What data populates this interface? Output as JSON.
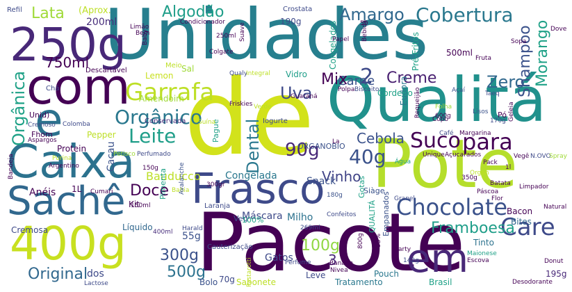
{
  "title": "Word cloud",
  "colors": {
    "background": "#ffffff",
    "palette": [
      "#440154",
      "#46327e",
      "#365c8d",
      "#277f8e",
      "#1fa187",
      "#4ac16d",
      "#a0da39",
      "#fde725"
    ]
  },
  "words": [
    {
      "text": "Unidades"
    },
    {
      "text": "de"
    },
    {
      "text": "Pacote"
    },
    {
      "text": "Pote"
    },
    {
      "text": "Qualitá"
    },
    {
      "text": "Caixa"
    },
    {
      "text": "com"
    },
    {
      "text": "250g"
    },
    {
      "text": "Frasco"
    },
    {
      "text": "400g"
    },
    {
      "text": "Sachê"
    },
    {
      "text": "em"
    },
    {
      "text": "e"
    },
    {
      "text": "Chocolate"
    },
    {
      "text": "para"
    },
    {
      "text": "Garrafa"
    },
    {
      "text": "Cobertura"
    },
    {
      "text": "Algodão"
    },
    {
      "text": "Amargo"
    },
    {
      "text": "Lata"
    },
    {
      "text": "(Aprox."
    },
    {
      "text": "200ml"
    },
    {
      "text": "750ml"
    },
    {
      "text": "Suco"
    },
    {
      "text": "40g"
    },
    {
      "text": "Care"
    },
    {
      "text": "Creme"
    },
    {
      "text": "Carne"
    },
    {
      "text": "Zero"
    },
    {
      "text": "Uva"
    },
    {
      "text": "Orgânico"
    },
    {
      "text": "Leite"
    },
    {
      "text": "Orgânica"
    },
    {
      "text": "Dental"
    },
    {
      "text": "Cebola"
    },
    {
      "text": "90g"
    },
    {
      "text": "Doce"
    },
    {
      "text": "Vinho"
    },
    {
      "text": "Framboesa"
    },
    {
      "text": "Original"
    },
    {
      "text": "300g"
    },
    {
      "text": "500g"
    },
    {
      "text": "100g"
    },
    {
      "text": "Morango"
    },
    {
      "text": "Shampoo"
    },
    {
      "text": "Bauducco"
    },
    {
      "text": "Mix"
    },
    {
      "text": "2"
    },
    {
      "text": "3"
    },
    {
      "text": "Cacau"
    },
    {
      "text": "Anéis"
    },
    {
      "text": "Congelada"
    },
    {
      "text": "Snack"
    },
    {
      "text": "Máscara"
    },
    {
      "text": "Milho"
    },
    {
      "text": "Tinto"
    },
    {
      "text": "Bites"
    },
    {
      "text": "Bacon"
    },
    {
      "text": "Gatos"
    },
    {
      "text": "Bolo"
    },
    {
      "text": "70g"
    },
    {
      "text": "Sabonete"
    },
    {
      "text": "Leve"
    },
    {
      "text": "Tratamento"
    },
    {
      "text": "Brasil"
    },
    {
      "text": "Pouch"
    },
    {
      "text": "195g"
    },
    {
      "text": "Kit"
    },
    {
      "text": "Líquido"
    },
    {
      "text": "Cremosa"
    },
    {
      "text": "Protein"
    },
    {
      "text": "Pepper"
    },
    {
      "text": "Lemon"
    },
    {
      "text": "Amendoim"
    },
    {
      "text": "Sal"
    },
    {
      "text": "Vidro"
    },
    {
      "text": "Cordeiro"
    },
    {
      "text": "Eudora"
    },
    {
      "text": "Pré-Fritos"
    },
    {
      "text": "Congelados"
    },
    {
      "text": "500ml"
    },
    {
      "text": "190g"
    },
    {
      "text": "Refil"
    },
    {
      "text": "Crostata"
    },
    {
      "text": "Conservada"
    },
    {
      "text": "Iogurte"
    },
    {
      "text": "ORGANOBIO"
    },
    {
      "text": "Pague"
    },
    {
      "text": "Veg"
    },
    {
      "text": "Gotas"
    },
    {
      "text": "Empanados"
    },
    {
      "text": "QUALITÁ"
    },
    {
      "text": "Siàge"
    },
    {
      "text": "Pimenta"
    },
    {
      "text": "Laranja"
    },
    {
      "text": "55g"
    },
    {
      "text": "100%"
    },
    {
      "text": "Fhom"
    },
    {
      "text": "Unid)"
    },
    {
      "text": "Descartável"
    },
    {
      "text": "Chá"
    },
    {
      "text": "1L"
    },
    {
      "text": "Meio"
    },
    {
      "text": "dos"
    },
    {
      "text": "Lactose"
    },
    {
      "text": "Cauterização"
    },
    {
      "text": "400ml"
    },
    {
      "text": "180g"
    },
    {
      "text": "Granel"
    },
    {
      "text": "Páscoa"
    },
    {
      "text": "Limpador"
    },
    {
      "text": "Natural"
    },
    {
      "text": "Flor"
    },
    {
      "text": "Batata"
    },
    {
      "text": "Desodorante"
    },
    {
      "text": "Donut"
    },
    {
      "text": "Maionese"
    },
    {
      "text": "Escova"
    },
    {
      "text": "Nivea"
    },
    {
      "text": "Banana"
    },
    {
      "text": "Perfume"
    },
    {
      "text": "Confeitos"
    },
    {
      "text": "Harald"
    },
    {
      "text": "Condicionador"
    },
    {
      "text": "Colgate"
    },
    {
      "text": "Papel"
    },
    {
      "text": "Bebida"
    },
    {
      "text": "Fruta"
    },
    {
      "text": "Sopa"
    },
    {
      "text": "Dove"
    },
    {
      "text": "Suave"
    },
    {
      "text": "Baby"
    },
    {
      "text": "Limão"
    },
    {
      "text": "Bem"
    },
    {
      "text": "Qualy"
    },
    {
      "text": "Integral"
    },
    {
      "text": "Polpa"
    },
    {
      "text": "Biscoito"
    },
    {
      "text": "Açaí"
    },
    {
      "text": "Taeq"
    },
    {
      "text": "Lisos"
    },
    {
      "text": "600g"
    },
    {
      "text": "170g"
    },
    {
      "text": "Café"
    },
    {
      "text": "Margarina"
    },
    {
      "text": "Geleia"
    },
    {
      "text": "Pó"
    },
    {
      "text": "Folha"
    },
    {
      "text": "Verde"
    },
    {
      "text": "Guaraná"
    },
    {
      "text": "Friskies"
    },
    {
      "text": "Suína"
    },
    {
      "text": "Colomba"
    },
    {
      "text": "Cremoso"
    },
    {
      "text": "Aspargos"
    },
    {
      "text": "Bandeja"
    },
    {
      "text": "Purina"
    },
    {
      "text": "Argentino"
    },
    {
      "text": "Petisco"
    },
    {
      "text": "Perfumado"
    },
    {
      "text": "150g"
    },
    {
      "text": "Cumari"
    },
    {
      "text": "150ml"
    },
    {
      "text": "Bahia"
    },
    {
      "text": "Avalanche"
    },
    {
      "text": "300gr"
    },
    {
      "text": "269ml"
    },
    {
      "text": "800g"
    },
    {
      "text": "142g"
    },
    {
      "text": "Party"
    },
    {
      "text": "Pack"
    },
    {
      "text": "Organ"
    },
    {
      "text": "Unique"
    },
    {
      "text": "Açucarados"
    },
    {
      "text": "Vegê"
    },
    {
      "text": "N.OVO"
    },
    {
      "text": "Spray"
    },
    {
      "text": "Água"
    },
    {
      "text": "Copo"
    },
    {
      "text": "La"
    },
    {
      "text": "50"
    },
    {
      "text": "Pastarotti"
    },
    {
      "text": "53%"
    },
    {
      "text": "350g"
    },
    {
      "text": "1l"
    },
    {
      "text": "250ml"
    },
    {
      "text": "Requeijão"
    }
  ]
}
